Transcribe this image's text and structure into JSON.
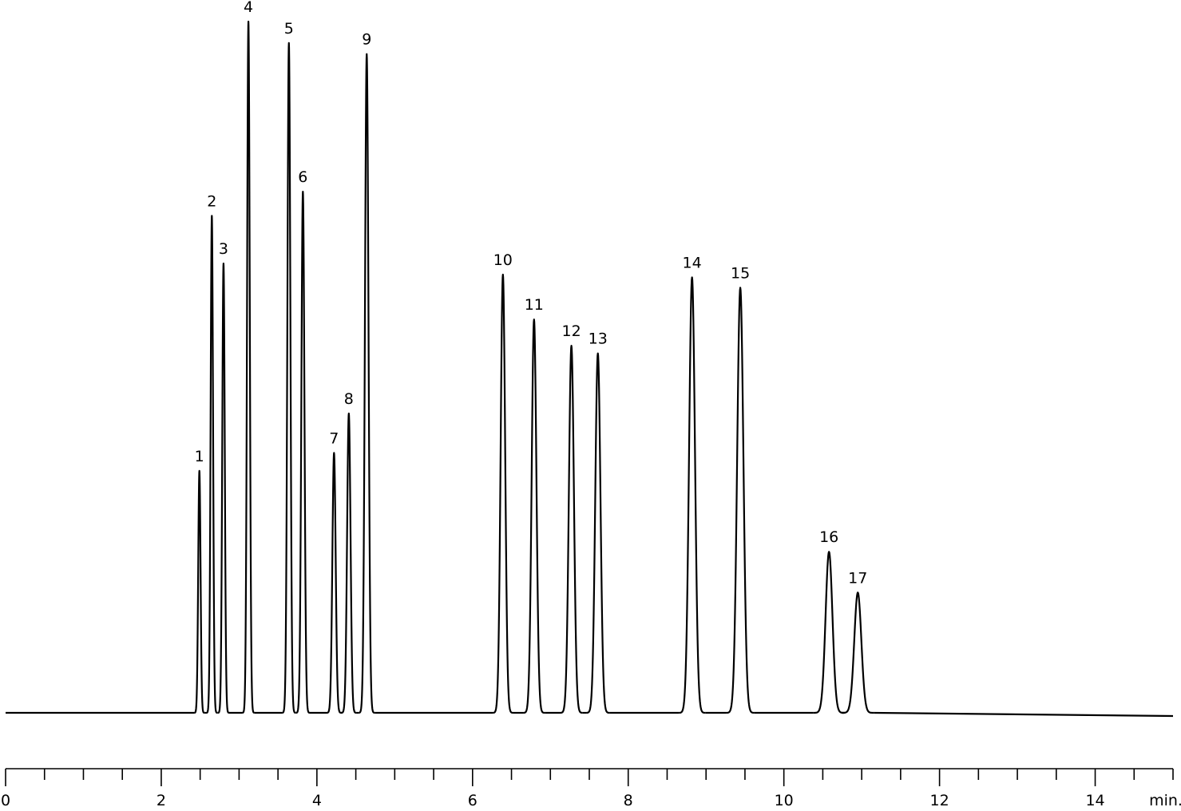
{
  "chart_data": {
    "type": "chromatogram",
    "xlabel": "min.",
    "xlim": [
      0,
      15
    ],
    "xticks": [
      0,
      2,
      4,
      6,
      8,
      10,
      12,
      14
    ],
    "xminor_ticks": [
      0.5,
      1,
      1.5,
      2.5,
      3,
      3.5,
      4.5,
      5,
      5.5,
      6.5,
      7,
      7.5,
      8.5,
      9,
      9.5,
      10.5,
      11,
      11.5,
      12.5,
      13,
      13.5,
      14.5,
      15
    ],
    "ylim": [
      0,
      100
    ],
    "color": "#000000",
    "peaks": [
      {
        "label": "1",
        "x": 2.49,
        "height": 35.0
      },
      {
        "label": "2",
        "x": 2.65,
        "height": 71.9
      },
      {
        "label": "3",
        "x": 2.8,
        "height": 65.0
      },
      {
        "label": "4",
        "x": 3.12,
        "height": 100
      },
      {
        "label": "5",
        "x": 3.64,
        "height": 96.9
      },
      {
        "label": "6",
        "x": 3.82,
        "height": 75.4
      },
      {
        "label": "7",
        "x": 4.22,
        "height": 37.6
      },
      {
        "label": "8",
        "x": 4.41,
        "height": 43.3
      },
      {
        "label": "9",
        "x": 4.64,
        "height": 95.3
      },
      {
        "label": "10",
        "x": 6.39,
        "height": 63.4
      },
      {
        "label": "11",
        "x": 6.79,
        "height": 56.9
      },
      {
        "label": "12",
        "x": 7.27,
        "height": 53.1
      },
      {
        "label": "13",
        "x": 7.61,
        "height": 52.0
      },
      {
        "label": "14",
        "x": 8.82,
        "height": 63.0
      },
      {
        "label": "15",
        "x": 9.44,
        "height": 61.5
      },
      {
        "label": "16",
        "x": 10.58,
        "height": 23.3
      },
      {
        "label": "17",
        "x": 10.95,
        "height": 17.4
      }
    ]
  }
}
